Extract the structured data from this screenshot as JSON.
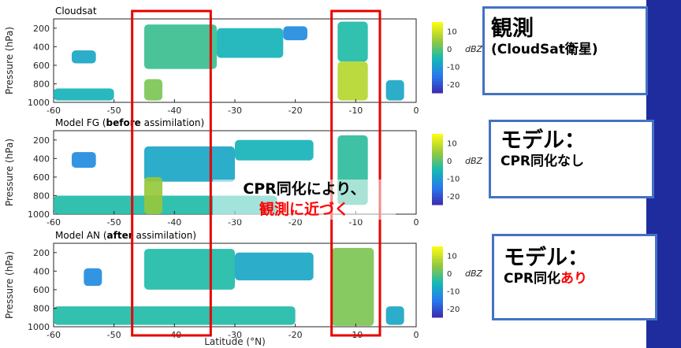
{
  "panels": [
    {
      "id": "obs",
      "title": "Cloudsat",
      "title_bold": "",
      "title_suffix": ""
    },
    {
      "id": "fg",
      "title": "Model FG (",
      "title_bold": "before",
      "title_suffix": " assimilation)"
    },
    {
      "id": "an",
      "title": "Model AN (",
      "title_bold": "after",
      "title_suffix": " assimilation)"
    }
  ],
  "chart_data": {
    "type": "heatmap",
    "xlabel": "Latitude (°N)",
    "ylabel": "Pressure (hPa)",
    "xlim": [
      -60,
      0
    ],
    "ylim": [
      1000,
      100
    ],
    "xticks": [
      -60,
      -50,
      -40,
      -30,
      -20,
      -10,
      0
    ],
    "yticks": [
      200,
      400,
      600,
      800,
      1000
    ],
    "colorbar": {
      "label": "dBZ",
      "ticks": [
        10,
        0,
        -10,
        -20
      ],
      "range": [
        -25,
        15
      ]
    },
    "highlight_boxes_latitude": [
      [
        -47,
        -34
      ],
      [
        -14,
        -6
      ]
    ],
    "regions": {
      "obs": [
        {
          "lat": [
            -45,
            -33
          ],
          "p": [
            160,
            640
          ],
          "dbz": -2
        },
        {
          "lat": [
            -33,
            -22
          ],
          "p": [
            200,
            520
          ],
          "dbz": -6
        },
        {
          "lat": [
            -22,
            -18
          ],
          "p": [
            180,
            330
          ],
          "dbz": -12
        },
        {
          "lat": [
            -57,
            -53
          ],
          "p": [
            440,
            580
          ],
          "dbz": -8
        },
        {
          "lat": [
            -60,
            -50
          ],
          "p": [
            850,
            980
          ],
          "dbz": -6
        },
        {
          "lat": [
            -45,
            -42
          ],
          "p": [
            750,
            980
          ],
          "dbz": 3
        },
        {
          "lat": [
            -13,
            -8
          ],
          "p": [
            130,
            560
          ],
          "dbz": -4
        },
        {
          "lat": [
            -13,
            -8
          ],
          "p": [
            560,
            980
          ],
          "dbz": 8
        },
        {
          "lat": [
            -5,
            -2
          ],
          "p": [
            760,
            980
          ],
          "dbz": -8
        }
      ],
      "fg": [
        {
          "lat": [
            -57,
            -53
          ],
          "p": [
            330,
            500
          ],
          "dbz": -12
        },
        {
          "lat": [
            -45,
            -30
          ],
          "p": [
            270,
            650
          ],
          "dbz": -8
        },
        {
          "lat": [
            -30,
            -17
          ],
          "p": [
            200,
            420
          ],
          "dbz": -6
        },
        {
          "lat": [
            -60,
            -23
          ],
          "p": [
            800,
            1000
          ],
          "dbz": -4
        },
        {
          "lat": [
            -13,
            -8
          ],
          "p": [
            150,
            900
          ],
          "dbz": -3
        },
        {
          "lat": [
            -45,
            -42
          ],
          "p": [
            600,
            1000
          ],
          "dbz": 5
        }
      ],
      "an": [
        {
          "lat": [
            -55,
            -52
          ],
          "p": [
            370,
            560
          ],
          "dbz": -12
        },
        {
          "lat": [
            -45,
            -30
          ],
          "p": [
            160,
            600
          ],
          "dbz": -4
        },
        {
          "lat": [
            -30,
            -17
          ],
          "p": [
            200,
            500
          ],
          "dbz": -8
        },
        {
          "lat": [
            -60,
            -20
          ],
          "p": [
            780,
            980
          ],
          "dbz": -4
        },
        {
          "lat": [
            -14,
            -7
          ],
          "p": [
            150,
            990
          ],
          "dbz": 3
        },
        {
          "lat": [
            -5,
            -2
          ],
          "p": [
            780,
            980
          ],
          "dbz": -8
        }
      ]
    }
  },
  "callouts": {
    "obs": {
      "big": "観測",
      "small": "(CloudSat衛星)"
    },
    "fg": {
      "big": "モデル：",
      "small": "CPR同化なし"
    },
    "an": {
      "big": "モデル：",
      "small_prefix": "CPR同化",
      "small_red": "あり"
    }
  },
  "overlay": {
    "line1": "CPR同化により、",
    "line2": "観測に近づく"
  },
  "colors": {
    "box": "#e60000",
    "callout_border": "#4472c4",
    "stripe": "#1f2c9e",
    "red_text": "#ff0000"
  }
}
